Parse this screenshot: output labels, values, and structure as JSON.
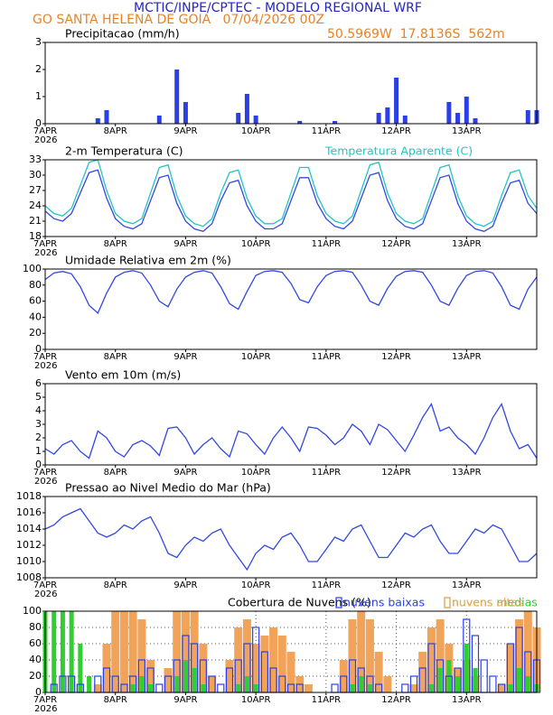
{
  "header": {
    "line1": "MCTIC/INPE/CPTEC - MODELO REGIONAL WRF",
    "line2": "GO SANTA HELENA DE GOIA   07/04/2026 00Z",
    "location": "50.5969W  17.8136S  562m"
  },
  "chart_data": [
    {
      "type": "bar",
      "title": "Precipitacao (mm/h)",
      "color": "#2b3fe6",
      "year_label": "2026",
      "x": [
        0,
        3,
        6,
        9,
        12,
        15,
        18,
        21,
        24,
        27,
        30,
        33,
        36,
        39,
        42,
        45,
        48,
        51,
        54,
        57,
        60,
        63,
        66,
        69,
        72,
        75,
        78,
        81,
        84,
        87,
        90,
        93,
        96,
        99,
        102,
        105,
        108,
        111,
        114,
        117,
        120,
        123,
        126,
        129,
        132,
        135,
        138,
        141,
        144,
        147,
        150,
        153,
        156,
        159,
        162,
        165,
        168
      ],
      "values": [
        0,
        0,
        0,
        0,
        0,
        0,
        0.2,
        0.5,
        0,
        0,
        0,
        0,
        0,
        0.3,
        0,
        2.0,
        0.8,
        0,
        0,
        0,
        0,
        0,
        0.4,
        1.1,
        0.3,
        0,
        0,
        0,
        0,
        0.1,
        0,
        0,
        0,
        0.1,
        0,
        0,
        0,
        0,
        0.4,
        0.6,
        1.7,
        0.3,
        0,
        0,
        0,
        0,
        0.8,
        0.4,
        1.0,
        0.2,
        0,
        0,
        0,
        0,
        0,
        0.5,
        0.5
      ],
      "xlim": [
        0,
        168
      ],
      "xticks": [
        {
          "value": 0,
          "label": "7APR"
        },
        {
          "value": 24,
          "label": "8APR"
        },
        {
          "value": 48,
          "label": "9APR"
        },
        {
          "value": 72,
          "label": "10APR"
        },
        {
          "value": 96,
          "label": "11APR"
        },
        {
          "value": 120,
          "label": "12APR"
        },
        {
          "value": 144,
          "label": "13APR"
        }
      ],
      "ylim": [
        0,
        3
      ],
      "yticks": [
        0,
        1,
        2,
        3
      ],
      "grid": false
    },
    {
      "type": "line",
      "year_label": "2026",
      "x": [
        0,
        3,
        6,
        9,
        12,
        15,
        18,
        21,
        24,
        27,
        30,
        33,
        36,
        39,
        42,
        45,
        48,
        51,
        54,
        57,
        60,
        63,
        66,
        69,
        72,
        75,
        78,
        81,
        84,
        87,
        90,
        93,
        96,
        99,
        102,
        105,
        108,
        111,
        114,
        117,
        120,
        123,
        126,
        129,
        132,
        135,
        138,
        141,
        144,
        147,
        150,
        153,
        156,
        159,
        162,
        165,
        168
      ],
      "series": [
        {
          "name": "2-m Temperatura (C)",
          "color": "#3348e0",
          "values": [
            23,
            21.5,
            21,
            22.5,
            26.5,
            30.5,
            31,
            25.5,
            21.5,
            20,
            19.5,
            20.5,
            25,
            29.5,
            30,
            24.5,
            21,
            19.5,
            19,
            20.5,
            25,
            28.5,
            29,
            24,
            21,
            19.5,
            19.5,
            20.5,
            25,
            29.5,
            29.5,
            24.5,
            21.5,
            20,
            19.5,
            21,
            25.5,
            30,
            30.5,
            25,
            21.5,
            20,
            19.5,
            20.5,
            25,
            29.5,
            30,
            24.5,
            21,
            19.5,
            19,
            20,
            24.5,
            28.5,
            29,
            24.5,
            22.5
          ]
        },
        {
          "name": "Temperatura Aparente (C)",
          "color": "#22c4c4",
          "values": [
            24,
            22.5,
            22,
            23.5,
            28,
            32.5,
            33,
            27,
            22.5,
            21,
            20.5,
            21.5,
            26.5,
            31.5,
            32,
            26,
            22,
            20.5,
            20,
            21.5,
            26.5,
            30.5,
            31,
            25.5,
            22,
            20.5,
            20.5,
            21.5,
            26.5,
            31.5,
            31.5,
            26,
            22.5,
            21,
            20.5,
            22,
            27,
            32,
            32.5,
            26.5,
            22.5,
            21,
            20.5,
            21.5,
            26.5,
            31.5,
            32,
            26,
            22,
            20.5,
            20,
            21,
            26,
            30.5,
            31,
            26,
            23.5
          ]
        }
      ],
      "xlim": [
        0,
        168
      ],
      "xticks": [
        {
          "value": 0,
          "label": "7APR"
        },
        {
          "value": 24,
          "label": "8APR"
        },
        {
          "value": 48,
          "label": "9APR"
        },
        {
          "value": 72,
          "label": "10APR"
        },
        {
          "value": 96,
          "label": "11APR"
        },
        {
          "value": 120,
          "label": "12APR"
        },
        {
          "value": 144,
          "label": "13APR"
        }
      ],
      "ylim": [
        18,
        33
      ],
      "yticks": [
        18,
        21,
        24,
        27,
        30,
        33
      ],
      "grid": false
    },
    {
      "type": "line",
      "title": "Umidade Relativa em 2m (%)",
      "color": "#3348e0",
      "year_label": "2026",
      "x": [
        0,
        3,
        6,
        9,
        12,
        15,
        18,
        21,
        24,
        27,
        30,
        33,
        36,
        39,
        42,
        45,
        48,
        51,
        54,
        57,
        60,
        63,
        66,
        69,
        72,
        75,
        78,
        81,
        84,
        87,
        90,
        93,
        96,
        99,
        102,
        105,
        108,
        111,
        114,
        117,
        120,
        123,
        126,
        129,
        132,
        135,
        138,
        141,
        144,
        147,
        150,
        153,
        156,
        159,
        162,
        165,
        168
      ],
      "values": [
        87,
        95,
        97,
        94,
        78,
        55,
        45,
        70,
        90,
        96,
        98,
        95,
        80,
        60,
        53,
        75,
        90,
        96,
        98,
        95,
        78,
        57,
        50,
        72,
        92,
        97,
        98,
        96,
        82,
        62,
        58,
        78,
        92,
        97,
        98,
        96,
        80,
        60,
        55,
        76,
        91,
        97,
        98,
        96,
        80,
        60,
        55,
        76,
        92,
        97,
        98,
        95,
        78,
        55,
        50,
        75,
        90
      ],
      "xlim": [
        0,
        168
      ],
      "xticks": [
        {
          "value": 0,
          "label": "7APR"
        },
        {
          "value": 24,
          "label": "8APR"
        },
        {
          "value": 48,
          "label": "9APR"
        },
        {
          "value": 72,
          "label": "10APR"
        },
        {
          "value": 96,
          "label": "11APR"
        },
        {
          "value": 120,
          "label": "12APR"
        },
        {
          "value": 144,
          "label": "13APR"
        }
      ],
      "ylim": [
        0,
        100
      ],
      "yticks": [
        0,
        20,
        40,
        60,
        80,
        100
      ],
      "grid": false
    },
    {
      "type": "line",
      "title": "Vento em 10m (m/s)",
      "color": "#3348e0",
      "year_label": "2026",
      "x": [
        0,
        3,
        6,
        9,
        12,
        15,
        18,
        21,
        24,
        27,
        30,
        33,
        36,
        39,
        42,
        45,
        48,
        51,
        54,
        57,
        60,
        63,
        66,
        69,
        72,
        75,
        78,
        81,
        84,
        87,
        90,
        93,
        96,
        99,
        102,
        105,
        108,
        111,
        114,
        117,
        120,
        123,
        126,
        129,
        132,
        135,
        138,
        141,
        144,
        147,
        150,
        153,
        156,
        159,
        162,
        165,
        168
      ],
      "values": [
        1.2,
        0.8,
        1.5,
        1.8,
        1,
        0.5,
        2.5,
        2,
        1,
        0.6,
        1.5,
        1.8,
        1.4,
        0.7,
        2.7,
        2.8,
        2,
        0.8,
        1.5,
        2,
        1.2,
        0.6,
        2.5,
        2.3,
        1.5,
        0.8,
        2,
        2.8,
        2,
        1,
        2.8,
        2.7,
        2.2,
        1.5,
        2,
        3,
        2.5,
        1.5,
        3,
        2.6,
        1.8,
        1,
        2.2,
        3.5,
        4.5,
        2.5,
        2.8,
        2,
        1.5,
        0.8,
        2,
        3.5,
        4.5,
        2.5,
        1.2,
        1.5,
        0.5
      ],
      "xlim": [
        0,
        168
      ],
      "xticks": [
        {
          "value": 0,
          "label": "7APR"
        },
        {
          "value": 24,
          "label": "8APR"
        },
        {
          "value": 48,
          "label": "9APR"
        },
        {
          "value": 72,
          "label": "10APR"
        },
        {
          "value": 96,
          "label": "11APR"
        },
        {
          "value": 120,
          "label": "12APR"
        },
        {
          "value": 144,
          "label": "13APR"
        }
      ],
      "ylim": [
        0,
        6
      ],
      "yticks": [
        0,
        1,
        2,
        3,
        4,
        5,
        6
      ],
      "grid": false
    },
    {
      "type": "line",
      "title": "Pressao ao Nivel Medio do Mar (hPa)",
      "color": "#3348e0",
      "year_label": "2026",
      "x": [
        0,
        3,
        6,
        9,
        12,
        15,
        18,
        21,
        24,
        27,
        30,
        33,
        36,
        39,
        42,
        45,
        48,
        51,
        54,
        57,
        60,
        63,
        66,
        69,
        72,
        75,
        78,
        81,
        84,
        87,
        90,
        93,
        96,
        99,
        102,
        105,
        108,
        111,
        114,
        117,
        120,
        123,
        126,
        129,
        132,
        135,
        138,
        141,
        144,
        147,
        150,
        153,
        156,
        159,
        162,
        165,
        168
      ],
      "values": [
        1014,
        1014.5,
        1015.5,
        1016,
        1016.5,
        1015,
        1013.5,
        1013,
        1013.5,
        1014.5,
        1014,
        1015,
        1015.5,
        1013.5,
        1011,
        1010.5,
        1012,
        1013,
        1012.5,
        1013.5,
        1014,
        1012,
        1010.5,
        1009,
        1011,
        1012,
        1011.5,
        1013,
        1013.5,
        1012,
        1010,
        1010,
        1011.5,
        1013,
        1012.5,
        1014,
        1014.5,
        1012.5,
        1010.5,
        1010.5,
        1012,
        1013.5,
        1013,
        1014,
        1014.5,
        1012.5,
        1011,
        1011,
        1012.5,
        1014,
        1013.5,
        1014.5,
        1014,
        1012,
        1010,
        1010,
        1011
      ],
      "xlim": [
        0,
        168
      ],
      "xticks": [
        {
          "value": 0,
          "label": "7APR"
        },
        {
          "value": 24,
          "label": "8APR"
        },
        {
          "value": 48,
          "label": "9APR"
        },
        {
          "value": 72,
          "label": "10APR"
        },
        {
          "value": 96,
          "label": "11APR"
        },
        {
          "value": 120,
          "label": "12APR"
        },
        {
          "value": 144,
          "label": "13APR"
        }
      ],
      "ylim": [
        1008,
        1018
      ],
      "yticks": [
        1008,
        1010,
        1012,
        1014,
        1016,
        1018
      ],
      "grid": false
    },
    {
      "type": "bar",
      "title": "Cobertura de Nuvens (%)",
      "year_label": "2026",
      "x": [
        0,
        3,
        6,
        9,
        12,
        15,
        18,
        21,
        24,
        27,
        30,
        33,
        36,
        39,
        42,
        45,
        48,
        51,
        54,
        57,
        60,
        63,
        66,
        69,
        72,
        75,
        78,
        81,
        84,
        87,
        90,
        93,
        96,
        99,
        102,
        105,
        108,
        111,
        114,
        117,
        120,
        123,
        126,
        129,
        132,
        135,
        138,
        141,
        144,
        147,
        150,
        153,
        156,
        159,
        162,
        165,
        168
      ],
      "series": [
        {
          "name": "nuvens baixas",
          "color": "#2b3fe6",
          "outline": true,
          "values": [
            0,
            10,
            20,
            20,
            10,
            0,
            20,
            30,
            20,
            10,
            20,
            40,
            30,
            10,
            20,
            40,
            70,
            60,
            40,
            20,
            10,
            30,
            40,
            60,
            80,
            50,
            30,
            20,
            10,
            10,
            0,
            0,
            0,
            10,
            20,
            40,
            30,
            20,
            10,
            0,
            0,
            10,
            20,
            30,
            60,
            40,
            20,
            30,
            90,
            70,
            40,
            20,
            10,
            60,
            80,
            50,
            40
          ]
        },
        {
          "name": "nuvens medias",
          "color": "#2fcf2f",
          "outline": false,
          "values": [
            100,
            100,
            100,
            100,
            60,
            20,
            0,
            0,
            0,
            0,
            10,
            20,
            10,
            0,
            0,
            20,
            40,
            30,
            10,
            0,
            0,
            0,
            10,
            20,
            10,
            0,
            0,
            0,
            0,
            0,
            0,
            0,
            0,
            0,
            0,
            10,
            20,
            10,
            0,
            0,
            0,
            0,
            0,
            0,
            10,
            30,
            40,
            20,
            60,
            30,
            0,
            0,
            0,
            10,
            30,
            20,
            10
          ]
        },
        {
          "name": "nuvens altas",
          "color": "#f2a35a",
          "outline": false,
          "values": [
            0,
            0,
            0,
            0,
            0,
            0,
            10,
            60,
            100,
            100,
            100,
            90,
            40,
            0,
            30,
            100,
            100,
            100,
            60,
            20,
            0,
            40,
            80,
            90,
            60,
            70,
            80,
            70,
            50,
            20,
            10,
            0,
            0,
            0,
            40,
            90,
            100,
            90,
            50,
            20,
            0,
            0,
            10,
            50,
            80,
            90,
            60,
            30,
            40,
            20,
            0,
            0,
            10,
            60,
            90,
            100,
            80
          ]
        }
      ],
      "xlim": [
        0,
        168
      ],
      "xticks": [
        {
          "value": 0,
          "label": "7APR"
        },
        {
          "value": 24,
          "label": "8APR"
        },
        {
          "value": 48,
          "label": "9APR"
        },
        {
          "value": 72,
          "label": "10APR"
        },
        {
          "value": 96,
          "label": "11APR"
        },
        {
          "value": 120,
          "label": "12APR"
        },
        {
          "value": 144,
          "label": "13APR"
        }
      ],
      "ylim": [
        0,
        100
      ],
      "yticks": [
        0,
        20,
        40,
        60,
        80,
        100
      ],
      "grid": true
    }
  ]
}
